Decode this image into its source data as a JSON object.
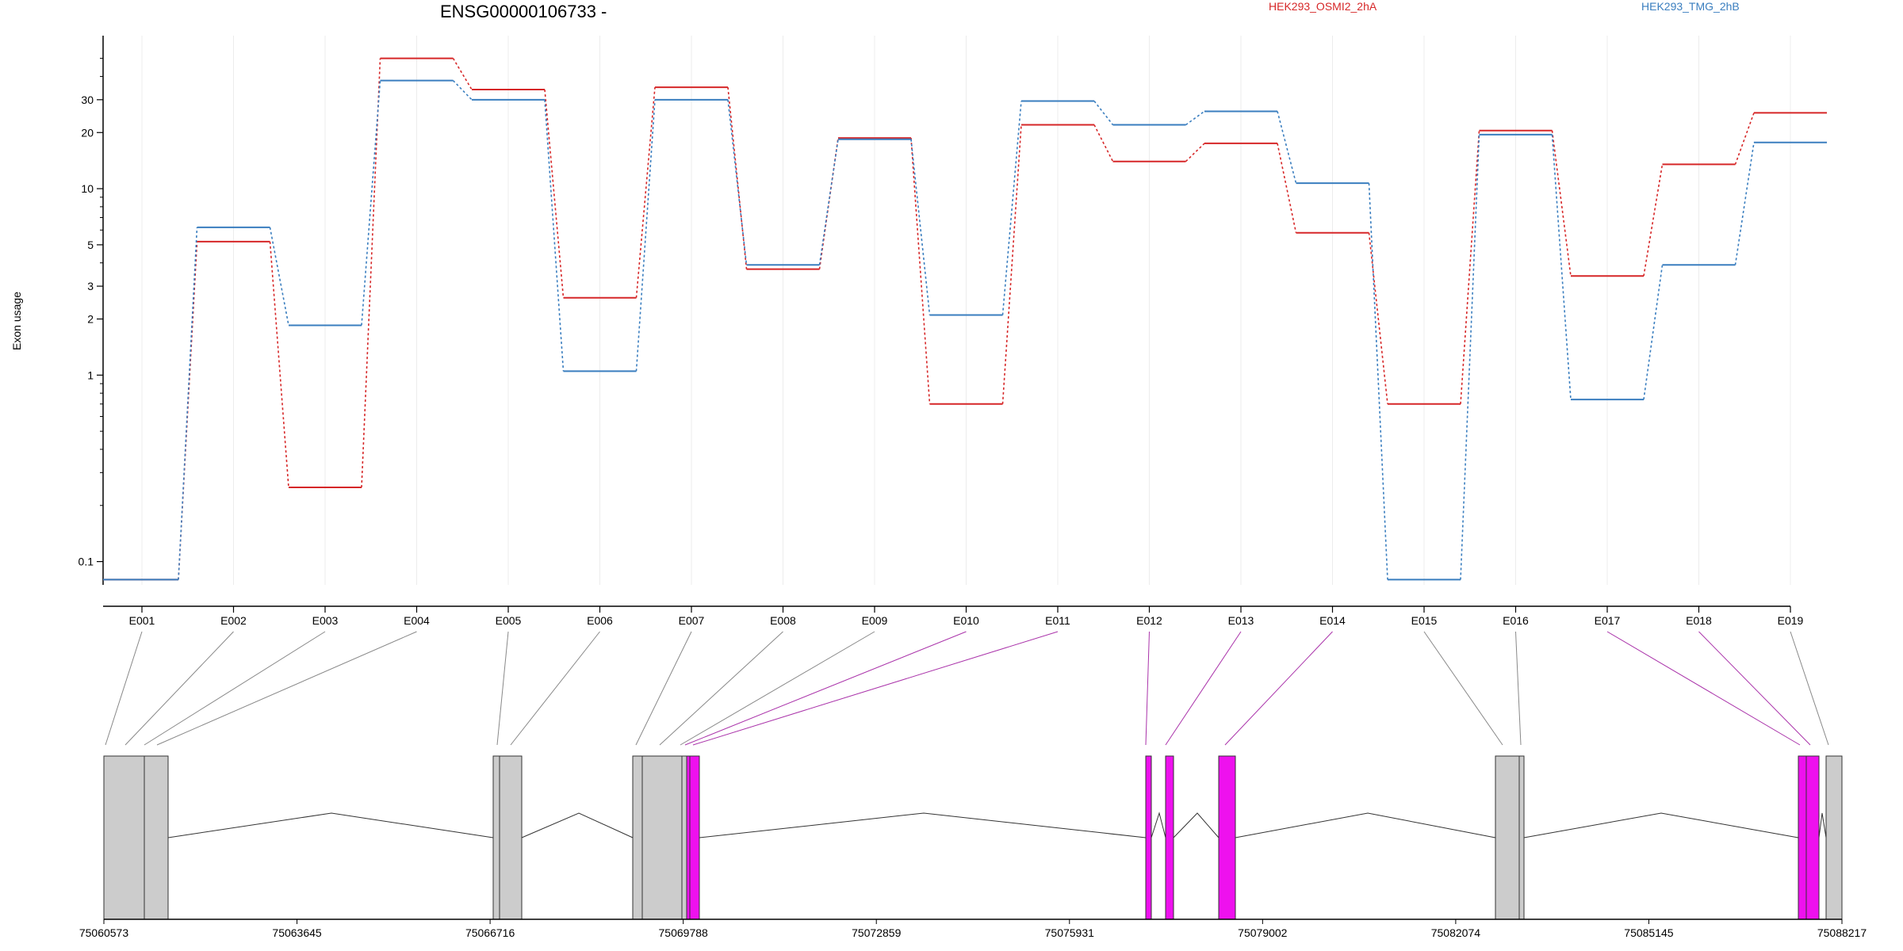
{
  "title": "ENSG00000106733 -",
  "legend": [
    {
      "name": "HEK293_OSMI2_2hA",
      "color": "#d62728"
    },
    {
      "name": "HEK293_TMG_2hB",
      "color": "#3a7ebf"
    }
  ],
  "chart_data": {
    "type": "line",
    "ylabel": "Exon usage",
    "yscale": "log",
    "ylim": [
      0.075,
      60
    ],
    "yticks": [
      0.1,
      1,
      2,
      3,
      5,
      10,
      20,
      30
    ],
    "ytick_labels": [
      "0.1",
      "1",
      "2",
      "3",
      "5",
      "10",
      "20",
      "30"
    ],
    "categories": [
      "E001",
      "E002",
      "E003",
      "E004",
      "E005",
      "E006",
      "E007",
      "E008",
      "E009",
      "E010",
      "E011",
      "E012",
      "E013",
      "E014",
      "E015",
      "E016",
      "E017",
      "E018",
      "E019"
    ],
    "series": [
      {
        "name": "HEK293_OSMI2_2hA",
        "color": "#d62728",
        "values": [
          0.08,
          5.2,
          0.25,
          50,
          34,
          2.6,
          35,
          3.7,
          18.7,
          0.7,
          22,
          14,
          17.5,
          5.8,
          0.7,
          20.5,
          3.4,
          13.5,
          25.5
        ]
      },
      {
        "name": "HEK293_TMG_2hB",
        "color": "#3a7ebf",
        "values": [
          0.08,
          6.2,
          1.85,
          38,
          30,
          1.05,
          30,
          3.9,
          18.4,
          2.1,
          29.5,
          22,
          26,
          10.7,
          0.08,
          19.5,
          0.74,
          3.9,
          17.7
        ]
      }
    ]
  },
  "gene_model": {
    "axis_ticks": [
      "75060573",
      "75063645",
      "75066716",
      "75069788",
      "75072859",
      "75075931",
      "75079002",
      "75082074",
      "75085145",
      "75088217"
    ],
    "exon_color_normal": "#cccccc",
    "exon_color_highlight": "#ee11ee",
    "connector_color_normal": "#888888",
    "connector_color_highlight": "#aa33aa"
  }
}
